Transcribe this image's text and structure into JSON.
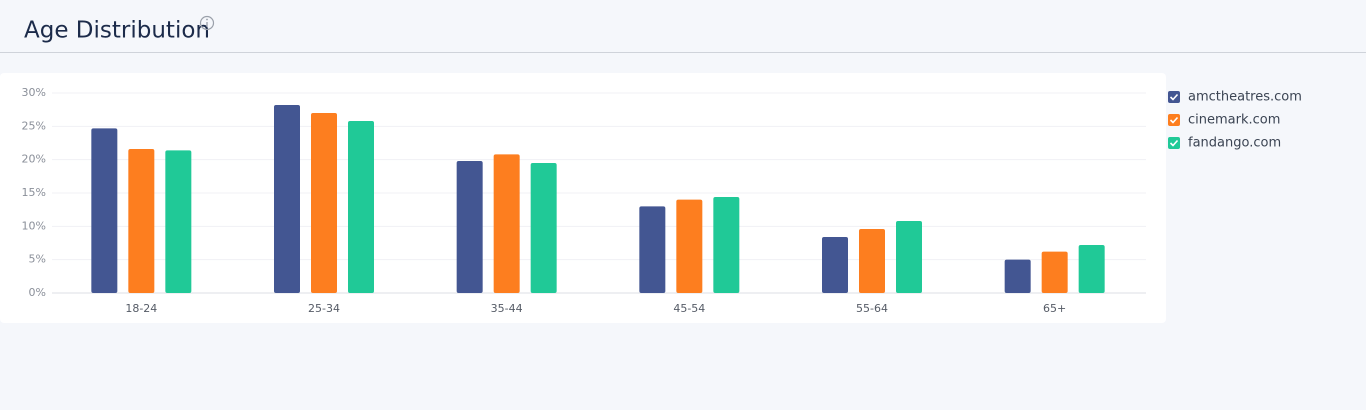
{
  "chart_data": {
    "type": "bar",
    "title": "Age Distribution",
    "categories": [
      "18-24",
      "25-34",
      "35-44",
      "45-54",
      "55-64",
      "65+"
    ],
    "series": [
      {
        "name": "amctheatres.com",
        "color": "#435692",
        "values": [
          24.7,
          28.2,
          19.8,
          13.0,
          8.4,
          5.0
        ]
      },
      {
        "name": "cinemark.com",
        "color": "#fd7e1f",
        "values": [
          21.6,
          27.0,
          20.8,
          14.0,
          9.6,
          6.2
        ]
      },
      {
        "name": "fandango.com",
        "color": "#20c997",
        "values": [
          21.4,
          25.8,
          19.5,
          14.4,
          10.8,
          7.2
        ]
      }
    ],
    "ylim": [
      0,
      30
    ],
    "yticks": [
      {
        "value": 0,
        "label": "0%"
      },
      {
        "value": 5,
        "label": "5%"
      },
      {
        "value": 10,
        "label": "10%"
      },
      {
        "value": 15,
        "label": "15%"
      },
      {
        "value": 20,
        "label": "20%"
      },
      {
        "value": 25,
        "label": "25%"
      },
      {
        "value": 30,
        "label": "30%"
      }
    ],
    "grid": true,
    "legend": "right"
  }
}
